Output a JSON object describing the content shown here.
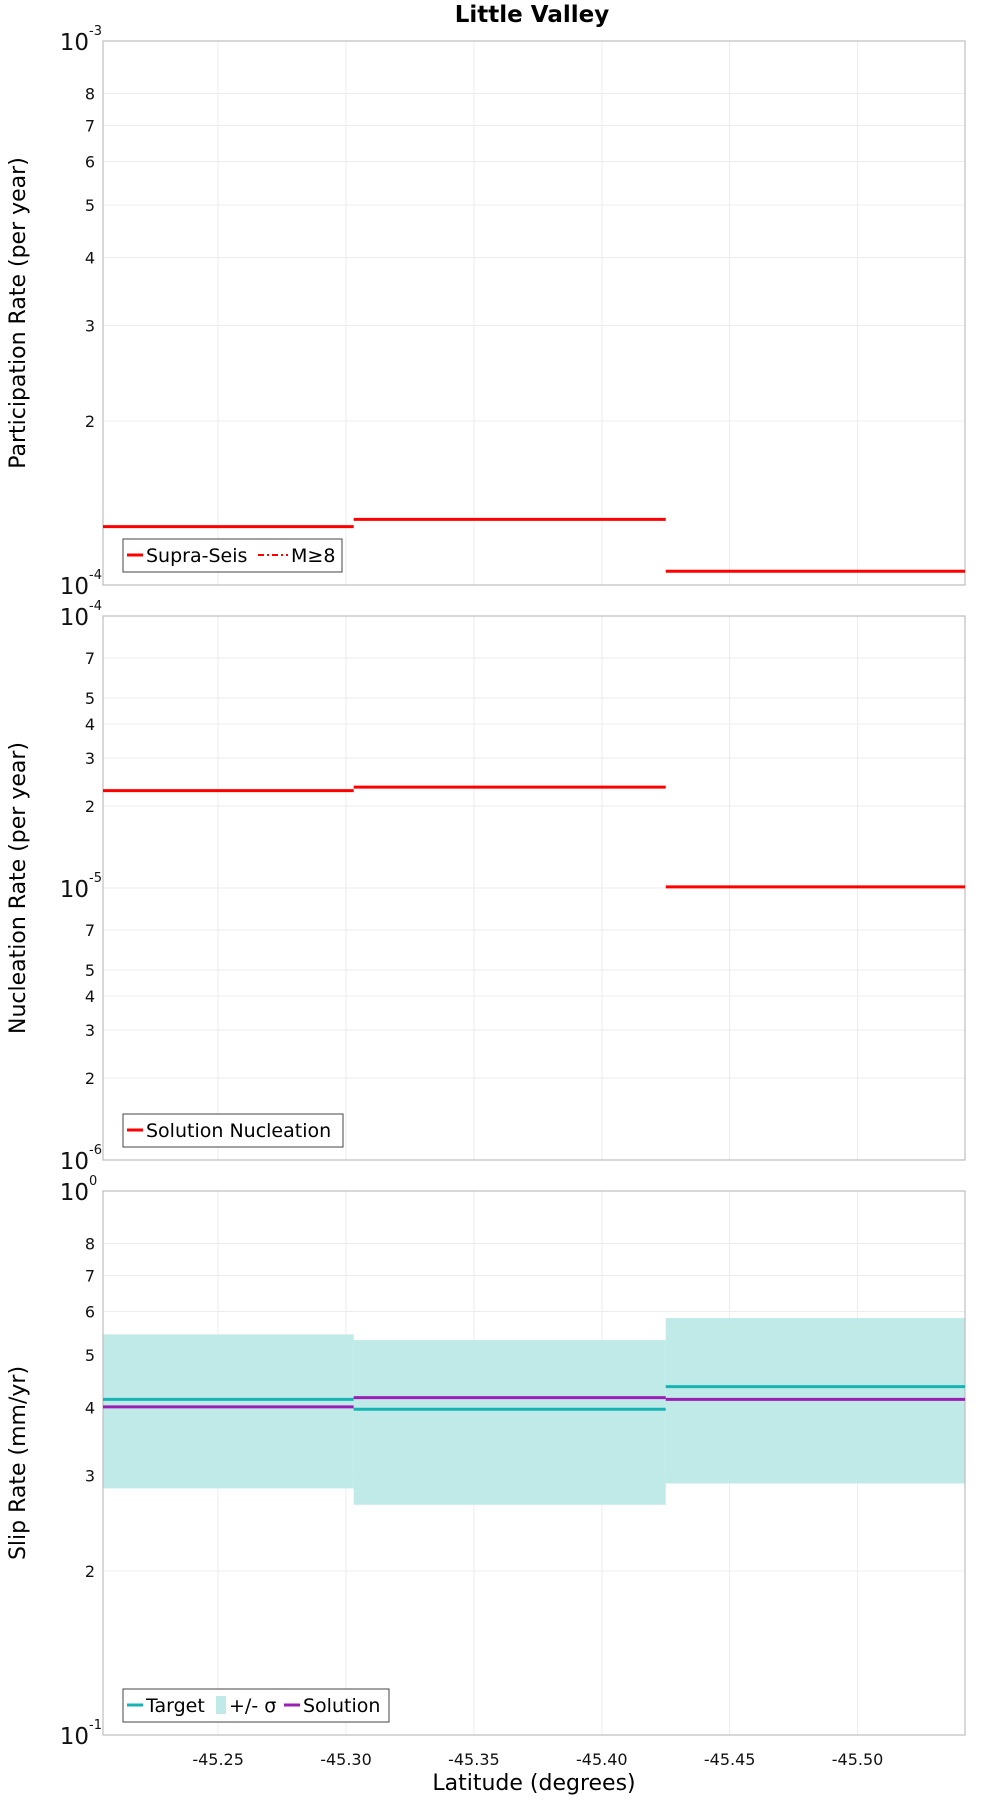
{
  "chart_data": [
    {
      "type": "line",
      "title": "Little Valley",
      "xlabel": "",
      "ylabel": "Participation Rate (per year)",
      "yscale": "log",
      "ylim": [
        0.0001,
        0.001
      ],
      "xlim": [
        -45.205,
        -45.542
      ],
      "grid": true,
      "legend": "bottom-left",
      "x_ticks": [
        -45.25,
        -45.3,
        -45.35,
        -45.4,
        -45.45,
        -45.5
      ],
      "y_ticks": [
        {
          "value": 0.001,
          "mantissa": "10",
          "exponent": "-3"
        },
        {
          "value": 0.0008,
          "label": "8"
        },
        {
          "value": 0.0007,
          "label": "7"
        },
        {
          "value": 0.0006,
          "label": "6"
        },
        {
          "value": 0.0005,
          "label": "5"
        },
        {
          "value": 0.0004,
          "label": "4"
        },
        {
          "value": 0.0003,
          "label": "3"
        },
        {
          "value": 0.0002,
          "label": "2"
        },
        {
          "value": 0.0001,
          "mantissa": "10",
          "exponent": "-4"
        }
      ],
      "series": [
        {
          "name": "Supra-Seis",
          "color": "#ff0000",
          "style": "solid",
          "segments": [
            {
              "x0": -45.205,
              "x1": -45.303,
              "value": 0.000128
            },
            {
              "x0": -45.303,
              "x1": -45.425,
              "value": 0.000132
            },
            {
              "x0": -45.425,
              "x1": -45.542,
              "value": 0.000106
            }
          ]
        },
        {
          "name": "M≥8",
          "color": "#ff0000",
          "style": "dash-dot",
          "segments": []
        }
      ]
    },
    {
      "type": "line",
      "ylabel": "Nucleation Rate (per year)",
      "yscale": "log",
      "ylim": [
        1e-06,
        0.0001
      ],
      "xlim": [
        -45.205,
        -45.542
      ],
      "grid": true,
      "legend": "bottom-left",
      "x_ticks": [
        -45.25,
        -45.3,
        -45.35,
        -45.4,
        -45.45,
        -45.5
      ],
      "y_ticks": [
        {
          "value": 0.0001,
          "mantissa": "10",
          "exponent": "-4"
        },
        {
          "value": 7e-05,
          "label": "7"
        },
        {
          "value": 5e-05,
          "label": "5"
        },
        {
          "value": 4e-05,
          "label": "4"
        },
        {
          "value": 3e-05,
          "label": "3"
        },
        {
          "value": 2e-05,
          "label": "2"
        },
        {
          "value": 1e-05,
          "mantissa": "10",
          "exponent": "-5"
        },
        {
          "value": 7e-06,
          "label": "7"
        },
        {
          "value": 5e-06,
          "label": "5"
        },
        {
          "value": 4e-06,
          "label": "4"
        },
        {
          "value": 3e-06,
          "label": "3"
        },
        {
          "value": 2e-06,
          "label": "2"
        },
        {
          "value": 1e-06,
          "mantissa": "10",
          "exponent": "-6"
        }
      ],
      "series": [
        {
          "name": "Solution Nucleation",
          "color": "#ff0000",
          "style": "solid",
          "segments": [
            {
              "x0": -45.205,
              "x1": -45.303,
              "value": 2.28e-05
            },
            {
              "x0": -45.303,
              "x1": -45.425,
              "value": 2.35e-05
            },
            {
              "x0": -45.425,
              "x1": -45.542,
              "value": 1.01e-05
            }
          ]
        }
      ]
    },
    {
      "type": "line",
      "xlabel": "Latitude (degrees)",
      "ylabel": "Slip Rate (mm/yr)",
      "yscale": "log",
      "ylim": [
        0.1,
        1
      ],
      "xlim": [
        -45.205,
        -45.542
      ],
      "grid": true,
      "legend": "bottom-left",
      "x_ticks": [
        -45.25,
        -45.3,
        -45.35,
        -45.4,
        -45.45,
        -45.5
      ],
      "x_tick_labels": [
        "-45.25",
        "-45.30",
        "-45.35",
        "-45.40",
        "-45.45",
        "-45.50"
      ],
      "y_ticks": [
        {
          "value": 1,
          "mantissa": "10",
          "exponent": "0"
        },
        {
          "value": 0.8,
          "label": "8"
        },
        {
          "value": 0.7,
          "label": "7"
        },
        {
          "value": 0.6,
          "label": "6"
        },
        {
          "value": 0.5,
          "label": "5"
        },
        {
          "value": 0.4,
          "label": "4"
        },
        {
          "value": 0.3,
          "label": "3"
        },
        {
          "value": 0.2,
          "label": "2"
        },
        {
          "value": 0.1,
          "mantissa": "10",
          "exponent": "-1"
        }
      ],
      "band": {
        "name": "+/- σ",
        "color": "#bfeae8",
        "segments": [
          {
            "x0": -45.205,
            "x1": -45.303,
            "low": 0.284,
            "high": 0.545
          },
          {
            "x0": -45.303,
            "x1": -45.425,
            "low": 0.265,
            "high": 0.532
          },
          {
            "x0": -45.425,
            "x1": -45.542,
            "low": 0.29,
            "high": 0.584
          }
        ]
      },
      "series": [
        {
          "name": "Target",
          "color": "#17b3b3",
          "style": "solid",
          "segments": [
            {
              "x0": -45.205,
              "x1": -45.303,
              "value": 0.414
            },
            {
              "x0": -45.303,
              "x1": -45.425,
              "value": 0.397
            },
            {
              "x0": -45.425,
              "x1": -45.542,
              "value": 0.437
            }
          ]
        },
        {
          "name": "Solution",
          "color": "#9b1fb5",
          "style": "solid",
          "segments": [
            {
              "x0": -45.205,
              "x1": -45.303,
              "value": 0.401
            },
            {
              "x0": -45.303,
              "x1": -45.425,
              "value": 0.417
            },
            {
              "x0": -45.425,
              "x1": -45.542,
              "value": 0.414
            }
          ]
        }
      ]
    }
  ]
}
